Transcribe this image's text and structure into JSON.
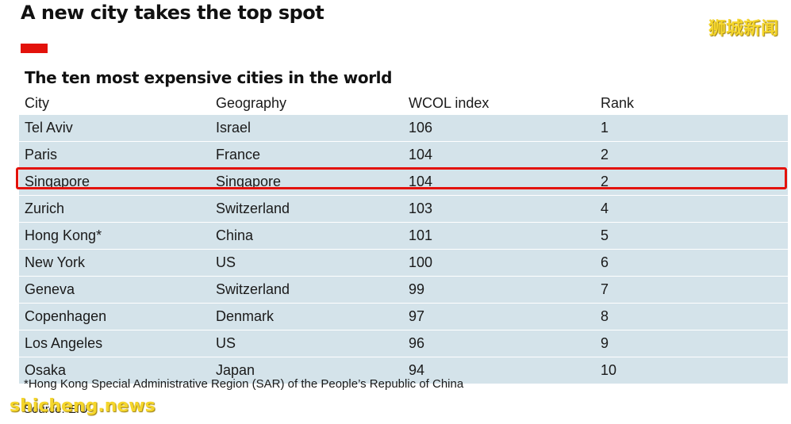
{
  "headline": "A new city takes the top spot",
  "watermark_cn": "狮城新闻",
  "watermark_en": "shicheng.news",
  "colors": {
    "accent_red": "#e3120b",
    "row_fill": "#d4e3ea",
    "watermark": "#f5d62c"
  },
  "chart_data": {
    "type": "table",
    "title": "The ten most expensive cities in the world",
    "columns": [
      "City",
      "Geography",
      "WCOL index",
      "Rank"
    ],
    "rows": [
      [
        "Tel Aviv",
        "Israel",
        "106",
        "1"
      ],
      [
        "Paris",
        "France",
        "104",
        "2"
      ],
      [
        "Singapore",
        "Singapore",
        "104",
        "2"
      ],
      [
        "Zurich",
        "Switzerland",
        "103",
        "4"
      ],
      [
        "Hong Kong*",
        "China",
        "101",
        "5"
      ],
      [
        "New York",
        "US",
        "100",
        "6"
      ],
      [
        "Geneva",
        "Switzerland",
        "99",
        "7"
      ],
      [
        "Copenhagen",
        "Denmark",
        "97",
        "8"
      ],
      [
        "Los Angeles",
        "US",
        "96",
        "9"
      ],
      [
        "Osaka",
        "Japan",
        "94",
        "10"
      ]
    ],
    "highlighted_row": "Singapore",
    "footnote": "*Hong Kong Special Administrative Region (SAR) of the People’s Republic of China",
    "source": "Source: EIU"
  }
}
